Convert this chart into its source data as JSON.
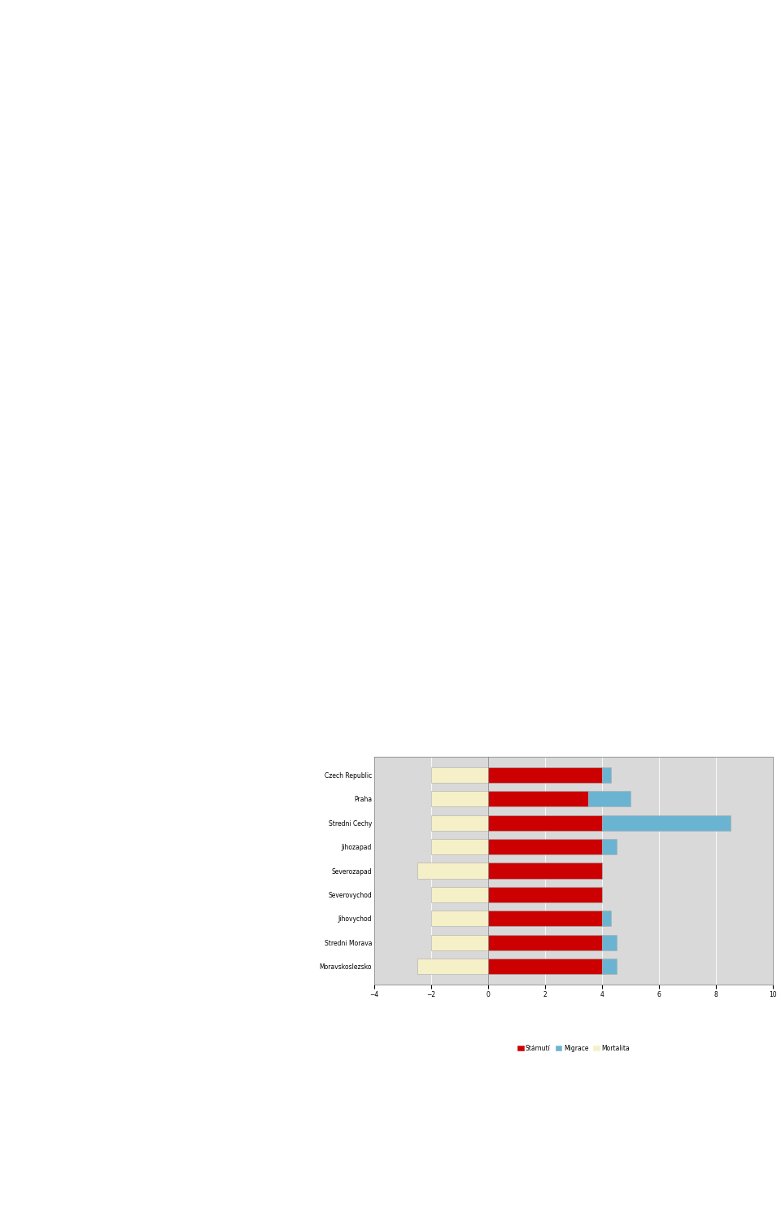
{
  "categories": [
    "Moravskoslezsko",
    "Stredni Morava",
    "Jihovychod",
    "Severovychod",
    "Severozapad",
    "Jihozapad",
    "Stredni Cechy",
    "Praha",
    "Czech Republic"
  ],
  "starnutí": [
    4.0,
    4.0,
    4.0,
    4.0,
    4.0,
    4.0,
    4.0,
    3.5,
    4.0
  ],
  "migrace": [
    0.5,
    0.5,
    0.3,
    0.0,
    0.0,
    0.5,
    4.5,
    1.5,
    0.3
  ],
  "mortalita": [
    -2.5,
    -2.0,
    -2.0,
    -2.0,
    -2.5,
    -2.0,
    -2.0,
    -2.0,
    -2.0
  ],
  "color_starnutí": "#cc0000",
  "color_migrace": "#6ab4d2",
  "color_mortalita": "#f5f0c8",
  "xlim": [
    -4,
    10
  ],
  "xticks": [
    -4,
    -2,
    0,
    2,
    4,
    6,
    8,
    10
  ],
  "background_color": "#d9d9d9",
  "plot_bg_color": "#d9d9d9",
  "legend_starnutí": "Stárnutí",
  "legend_migrace": "Migrace",
  "legend_mortalita": "Mortalita",
  "border_color": "#999999",
  "grid_color": "#ffffff"
}
